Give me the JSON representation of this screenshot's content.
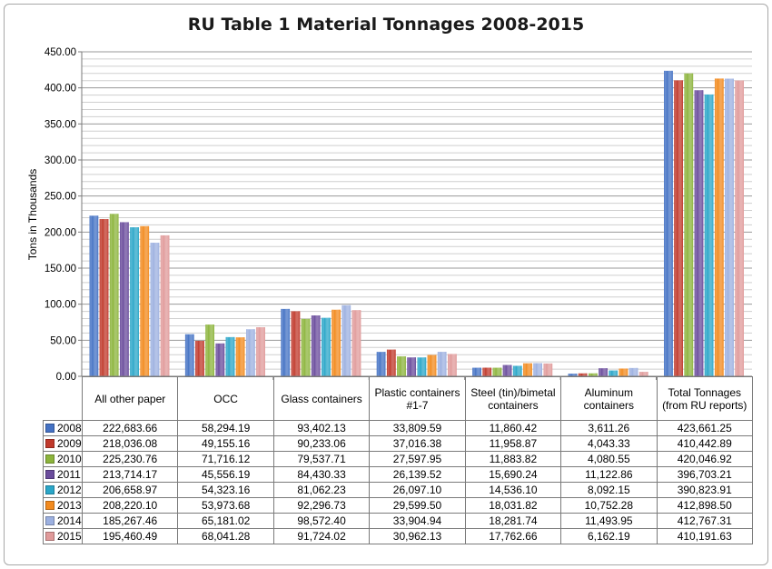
{
  "chart_data": {
    "type": "bar",
    "title": "RU Table 1 Material Tonnages 2008-2015",
    "ylabel": "Tons in Thousands",
    "ylim": [
      0,
      450
    ],
    "yticks": [
      "0.00",
      "50.00",
      "100.00",
      "150.00",
      "200.00",
      "250.00",
      "300.00",
      "350.00",
      "400.00",
      "450.00"
    ],
    "grid": true,
    "legend": "data-table",
    "categories": [
      "All other paper",
      "OCC",
      "Glass containers",
      "Plastic containers #1-7",
      "Steel (tin)/bimetal containers",
      "Aluminum containers",
      "Total Tonnages (from RU reports)"
    ],
    "series": [
      {
        "name": "2008",
        "color": "#4472c4",
        "values": [
          222683.66,
          58294.19,
          93402.13,
          33809.59,
          11860.42,
          3611.26,
          423661.25
        ],
        "labels": [
          "222,683.66",
          "58,294.19",
          "93,402.13",
          "33,809.59",
          "11,860.42",
          "3,611.26",
          "423,661.25"
        ]
      },
      {
        "name": "2009",
        "color": "#c0392b",
        "values": [
          218036.08,
          49155.16,
          90233.06,
          37016.38,
          11958.87,
          4043.33,
          410442.89
        ],
        "labels": [
          "218,036.08",
          "49,155.16",
          "90,233.06",
          "37,016.38",
          "11,958.87",
          "4,043.33",
          "410,442.89"
        ]
      },
      {
        "name": "2010",
        "color": "#8cb43c",
        "values": [
          225230.76,
          71716.12,
          79537.71,
          27597.95,
          11883.82,
          4080.55,
          420046.92
        ],
        "labels": [
          "225,230.76",
          "71,716.12",
          "79,537.71",
          "27,597.95",
          "11,883.82",
          "4,080.55",
          "420,046.92"
        ]
      },
      {
        "name": "2011",
        "color": "#6a4c9c",
        "values": [
          213714.17,
          45556.19,
          84430.33,
          26139.52,
          15690.24,
          11122.86,
          396703.21
        ],
        "labels": [
          "213,714.17",
          "45,556.19",
          "84,430.33",
          "26,139.52",
          "15,690.24",
          "11,122.86",
          "396,703.21"
        ]
      },
      {
        "name": "2012",
        "color": "#2aa6c8",
        "values": [
          206658.97,
          54323.16,
          81062.23,
          26097.1,
          14536.1,
          8092.15,
          390823.91
        ],
        "labels": [
          "206,658.97",
          "54,323.16",
          "81,062.23",
          "26,097.10",
          "14,536.10",
          "8,092.15",
          "390,823.91"
        ]
      },
      {
        "name": "2013",
        "color": "#f28a1e",
        "values": [
          208220.1,
          53973.68,
          92296.73,
          29599.5,
          18031.82,
          10752.28,
          412898.5
        ],
        "labels": [
          "208,220.10",
          "53,973.68",
          "92,296.73",
          "29,599.50",
          "18,031.82",
          "10,752.28",
          "412,898.50"
        ]
      },
      {
        "name": "2014",
        "color": "#9cb0e0",
        "values": [
          185267.46,
          65181.02,
          98572.4,
          33904.94,
          18281.74,
          11493.95,
          412767.31
        ],
        "labels": [
          "185,267.46",
          "65,181.02",
          "98,572.40",
          "33,904.94",
          "18,281.74",
          "11,493.95",
          "412,767.31"
        ]
      },
      {
        "name": "2015",
        "color": "#e09a9a",
        "values": [
          195460.49,
          68041.28,
          91724.02,
          30962.13,
          17762.66,
          6162.19,
          410191.63
        ],
        "labels": [
          "195,460.49",
          "68,041.28",
          "91,724.02",
          "30,962.13",
          "17,762.66",
          "6,162.19",
          "410,191.63"
        ]
      }
    ]
  }
}
